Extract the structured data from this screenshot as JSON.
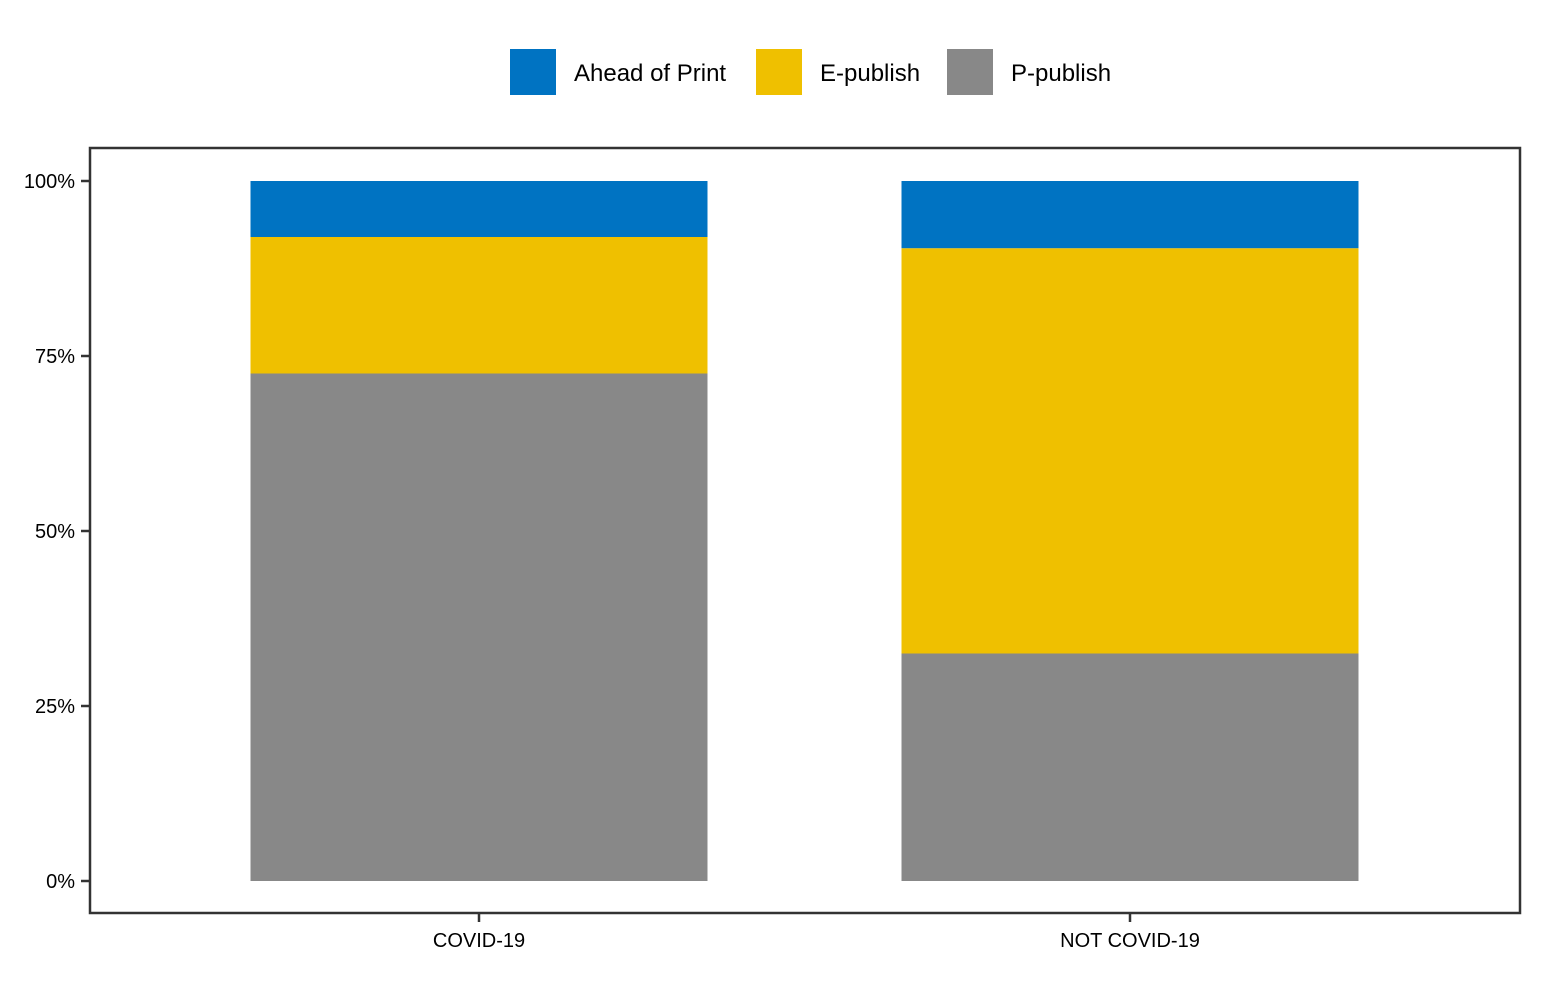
{
  "chart_data": {
    "type": "bar",
    "stacked": true,
    "categories": [
      "COVID-19",
      "NOT COVID-19"
    ],
    "series": [
      {
        "name": "P-publish",
        "values": [
          72.5,
          32.5
        ],
        "color": "#888888"
      },
      {
        "name": "E-publish",
        "values": [
          19.5,
          57.9
        ],
        "color": "#EFC000"
      },
      {
        "name": "Ahead of Print",
        "values": [
          8.0,
          9.6
        ],
        "color": "#0073C2"
      }
    ],
    "legend_order": [
      "Ahead of Print",
      "E-publish",
      "P-publish"
    ],
    "legend_position": "top",
    "y_ticks": [
      "0%",
      "25%",
      "50%",
      "75%",
      "100%"
    ],
    "ylim": [
      0,
      100
    ],
    "title": "",
    "xlabel": "",
    "ylabel": "",
    "grid": false
  }
}
